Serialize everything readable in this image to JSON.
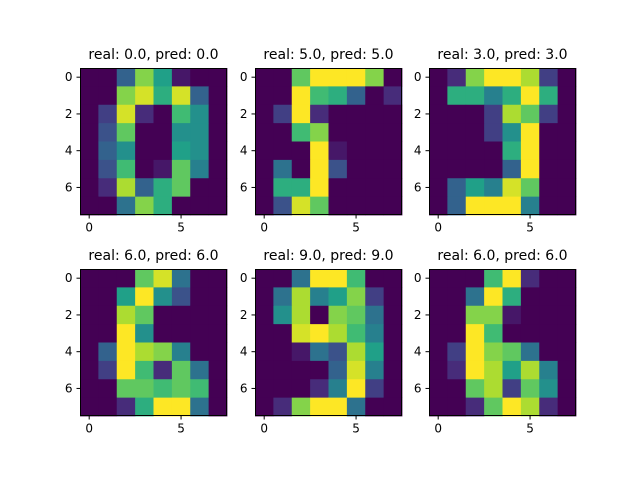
{
  "chart_data": [
    {
      "type": "heatmap",
      "title": "real: 0.0, pred: 0.0",
      "colormap": "viridis",
      "vmin": 0,
      "vmax": 16,
      "xticks": [
        0,
        5
      ],
      "yticks": [
        0,
        2,
        4,
        6
      ],
      "values": [
        [
          0,
          0,
          5,
          13,
          9,
          1,
          0,
          0
        ],
        [
          0,
          0,
          13,
          15,
          10,
          15,
          5,
          0
        ],
        [
          0,
          3,
          15,
          2,
          0,
          11,
          8,
          0
        ],
        [
          0,
          4,
          12,
          0,
          0,
          8,
          8,
          0
        ],
        [
          0,
          5,
          8,
          0,
          0,
          9,
          8,
          0
        ],
        [
          0,
          4,
          11,
          0,
          1,
          12,
          7,
          0
        ],
        [
          0,
          2,
          14,
          5,
          10,
          12,
          0,
          0
        ],
        [
          0,
          0,
          6,
          13,
          10,
          0,
          0,
          0
        ]
      ]
    },
    {
      "type": "heatmap",
      "title": "real: 5.0, pred: 5.0",
      "colormap": "viridis",
      "vmin": 0,
      "vmax": 16,
      "xticks": [
        0,
        5
      ],
      "yticks": [
        0,
        2,
        4,
        6
      ],
      "values": [
        [
          0,
          0,
          12,
          16,
          16,
          16,
          13,
          0
        ],
        [
          0,
          0,
          16,
          11,
          10,
          5,
          0,
          2
        ],
        [
          0,
          3,
          16,
          2,
          0,
          0,
          0,
          0
        ],
        [
          0,
          0,
          11,
          13,
          0,
          0,
          0,
          0
        ],
        [
          0,
          0,
          0,
          16,
          1,
          0,
          0,
          0
        ],
        [
          0,
          6,
          0,
          16,
          4,
          0,
          0,
          0
        ],
        [
          0,
          10,
          10,
          16,
          0,
          0,
          0,
          0
        ],
        [
          0,
          4,
          15,
          12,
          0,
          0,
          0,
          0
        ]
      ]
    },
    {
      "type": "heatmap",
      "title": "real: 3.0, pred: 3.0",
      "colormap": "viridis",
      "vmin": 0,
      "vmax": 16,
      "xticks": [
        0,
        5
      ],
      "yticks": [
        0,
        2,
        4,
        6
      ],
      "values": [
        [
          0,
          2,
          13,
          16,
          16,
          14,
          3,
          0
        ],
        [
          0,
          10,
          10,
          7,
          10,
          16,
          10,
          0
        ],
        [
          0,
          0,
          0,
          3,
          14,
          12,
          3,
          0
        ],
        [
          0,
          0,
          0,
          3,
          8,
          16,
          0,
          0
        ],
        [
          0,
          0,
          0,
          0,
          10,
          16,
          0,
          0
        ],
        [
          0,
          0,
          0,
          0,
          5,
          16,
          0,
          0
        ],
        [
          0,
          5,
          9,
          7,
          15,
          12,
          0,
          0
        ],
        [
          0,
          5,
          16,
          16,
          16,
          7,
          0,
          0
        ]
      ]
    },
    {
      "type": "heatmap",
      "title": "real: 6.0, pred: 6.0",
      "colormap": "viridis",
      "vmin": 0,
      "vmax": 16,
      "xticks": [
        0,
        5
      ],
      "yticks": [
        0,
        2,
        4,
        6
      ],
      "values": [
        [
          0,
          0,
          0,
          12,
          15,
          6,
          0,
          0
        ],
        [
          0,
          0,
          9,
          16,
          8,
          4,
          0,
          0
        ],
        [
          0,
          0,
          14,
          12,
          0,
          0,
          0,
          0
        ],
        [
          0,
          0,
          16,
          8,
          0,
          0,
          0,
          0
        ],
        [
          0,
          5,
          16,
          14,
          13,
          7,
          0,
          0
        ],
        [
          0,
          3,
          16,
          11,
          2,
          12,
          6,
          0
        ],
        [
          0,
          0,
          12,
          12,
          11,
          12,
          11,
          0
        ],
        [
          0,
          0,
          2,
          10,
          16,
          16,
          6,
          0
        ]
      ]
    },
    {
      "type": "heatmap",
      "title": "real: 9.0, pred: 9.0",
      "colormap": "viridis",
      "vmin": 0,
      "vmax": 16,
      "xticks": [
        0,
        5
      ],
      "yticks": [
        0,
        2,
        4,
        6
      ],
      "values": [
        [
          0,
          0,
          6,
          16,
          16,
          11,
          0,
          0
        ],
        [
          0,
          6,
          14,
          7,
          9,
          13,
          3,
          0
        ],
        [
          0,
          8,
          14,
          0,
          13,
          12,
          6,
          0
        ],
        [
          0,
          0,
          15,
          16,
          14,
          11,
          7,
          0
        ],
        [
          0,
          0,
          1,
          6,
          4,
          14,
          9,
          0
        ],
        [
          0,
          0,
          0,
          0,
          5,
          15,
          7,
          0
        ],
        [
          0,
          0,
          0,
          2,
          7,
          16,
          3,
          0
        ],
        [
          0,
          2,
          13,
          16,
          16,
          6,
          0,
          0
        ]
      ]
    },
    {
      "type": "heatmap",
      "title": "real: 6.0, pred: 6.0",
      "colormap": "viridis",
      "vmin": 0,
      "vmax": 16,
      "xticks": [
        0,
        5
      ],
      "yticks": [
        0,
        2,
        4,
        6
      ],
      "values": [
        [
          0,
          0,
          0,
          11,
          16,
          2,
          0,
          0
        ],
        [
          0,
          0,
          6,
          16,
          10,
          0,
          0,
          0
        ],
        [
          0,
          0,
          13,
          13,
          1,
          0,
          0,
          0
        ],
        [
          0,
          0,
          16,
          11,
          0,
          0,
          0,
          0
        ],
        [
          0,
          3,
          16,
          13,
          12,
          6,
          0,
          0
        ],
        [
          0,
          2,
          16,
          14,
          9,
          14,
          7,
          0
        ],
        [
          0,
          0,
          12,
          14,
          3,
          12,
          8,
          0
        ],
        [
          0,
          0,
          2,
          12,
          16,
          14,
          2,
          0
        ]
      ]
    }
  ]
}
